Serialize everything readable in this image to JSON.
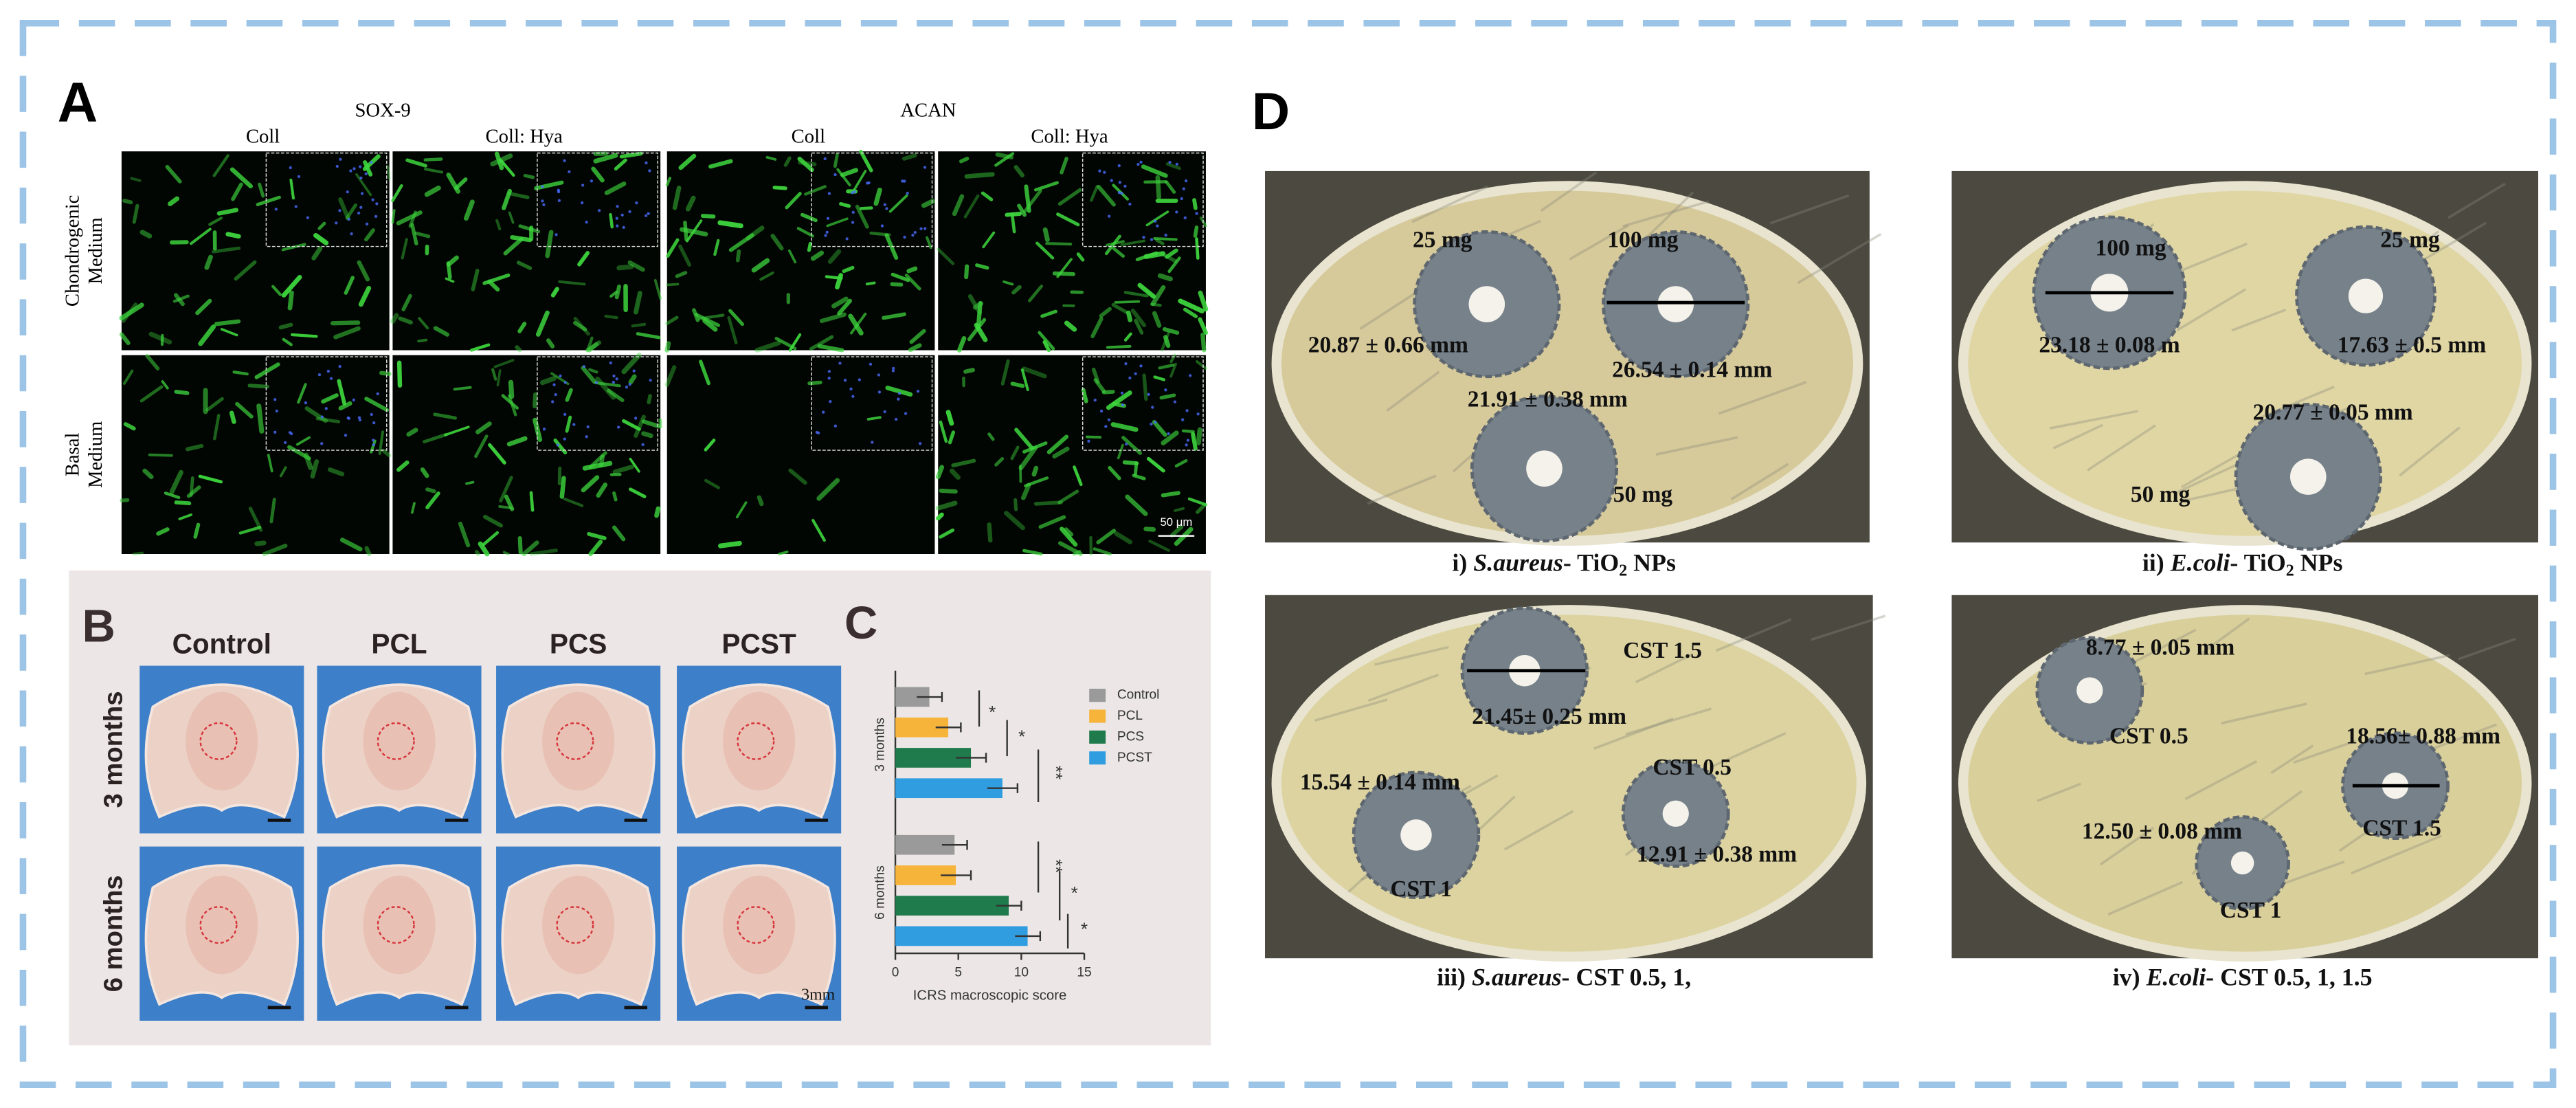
{
  "panel_a": {
    "label": "A",
    "groups": [
      {
        "marker": "SOX-9",
        "columns": [
          "Coll",
          "Coll: Hya"
        ]
      },
      {
        "marker": "ACAN",
        "columns": [
          "Coll",
          "Coll: Hya"
        ]
      }
    ],
    "rows": [
      [
        "Chondrogenic",
        "Medium"
      ],
      [
        "Basal",
        "Medium"
      ]
    ],
    "scale_bar": "50 μm"
  },
  "panel_b": {
    "label": "B",
    "columns": [
      "Control",
      "PCL",
      "PCS",
      "PCST"
    ],
    "rows": [
      "3 months",
      "6 months"
    ],
    "scale_bar": "3mm"
  },
  "panel_c": {
    "label": "C",
    "type": "bar",
    "categories": [
      "3 months",
      "6 months"
    ],
    "series": [
      {
        "name": "Control",
        "color": "#9a9a9a",
        "values": [
          2.7,
          4.7
        ],
        "errors": [
          1.0,
          1.0
        ]
      },
      {
        "name": "PCL",
        "color": "#f6b43a",
        "values": [
          4.2,
          4.8
        ],
        "errors": [
          1.0,
          1.2
        ]
      },
      {
        "name": "PCS",
        "color": "#1f7a4c",
        "values": [
          6.0,
          9.0
        ],
        "errors": [
          1.2,
          1.0
        ]
      },
      {
        "name": "PCST",
        "color": "#2f9de0",
        "values": [
          8.5,
          10.5
        ],
        "errors": [
          1.2,
          1.0
        ]
      }
    ],
    "xlim": [
      0,
      15
    ],
    "xticks": [
      0,
      5,
      10,
      15
    ],
    "xlabel": "ICRS macroscopic score",
    "significance": [
      [
        "*",
        "*",
        "**"
      ],
      [
        "**",
        "*",
        "*"
      ]
    ]
  },
  "panel_d": {
    "label": "D",
    "plates": [
      {
        "caption": {
          "prefix": "i)",
          "organism": "S.aureus",
          "material": "- TiO",
          "subscript": "2",
          "suffix": " NPs"
        },
        "labels": [
          "25 mg",
          "100 mg",
          "20.87 ± 0.66 mm",
          "26.54 ± 0.14 mm",
          "21.91 ± 0.38 mm",
          "50 mg"
        ]
      },
      {
        "caption": {
          "prefix": "ii)",
          "organism": "E.coli",
          "material": "- TiO",
          "subscript": "2",
          "suffix": " NPs"
        },
        "labels": [
          "100 mg",
          "25 mg",
          "23.18 ± 0.08 m",
          "17.63 ± 0.5 mm",
          "20.77 ± 0.05 mm",
          "50 mg"
        ]
      },
      {
        "caption": {
          "prefix": "iii)",
          "organism": "S.aureus",
          "material": "- CST 0.5, 1,"
        },
        "labels": [
          "CST 1.5",
          "21.45± 0.25 mm",
          "15.54 ± 0.14 mm",
          "CST 0.5",
          "12.91 ± 0.38 mm",
          "CST 1"
        ]
      },
      {
        "caption": {
          "prefix": "iv)",
          "organism": "E.coli",
          "material": "- CST 0.5, 1, 1.5"
        },
        "labels": [
          "8.77 ± 0.05 mm",
          "CST 0.5",
          "18.56± 0.88 mm",
          "CST 1.5",
          "12.50 ± 0.08 mm",
          "CST 1"
        ]
      }
    ]
  }
}
